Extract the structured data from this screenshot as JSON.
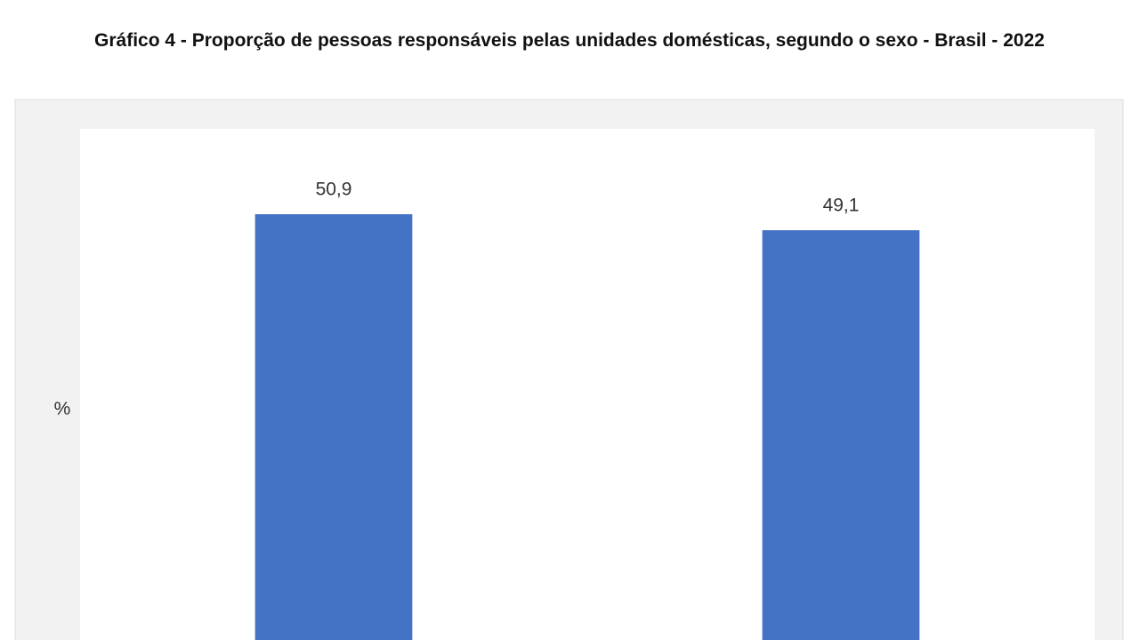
{
  "chart_data": {
    "type": "bar",
    "title": "Gráfico 4 - Proporção de pessoas responsáveis pelas unidades domésticas, segundo o sexo - Brasil - 2022",
    "y_label": "%",
    "values": [
      50.9,
      49.1
    ],
    "value_labels": [
      "50,9",
      "49,1"
    ],
    "color": "#4472c4",
    "ylim": [
      0,
      60
    ]
  }
}
